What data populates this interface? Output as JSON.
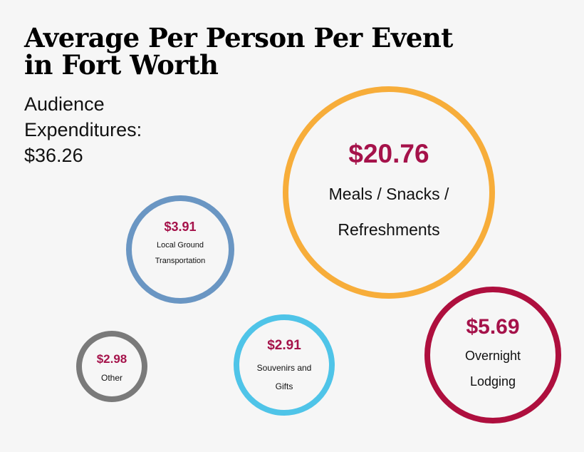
{
  "title_lines": [
    "Average Per Person Per Event",
    "in Fort Worth"
  ],
  "summary_lines": [
    "Audience",
    "Expenditures:",
    "$36.26"
  ],
  "chart_data": {
    "type": "bubble",
    "total": 36.26,
    "items": [
      {
        "value_label": "$20.76",
        "value": 20.76,
        "label_lines": [
          "Meals / Snacks /",
          "Refreshments"
        ],
        "color": "#f7ad3a"
      },
      {
        "value_label": "$3.91",
        "value": 3.91,
        "label_lines": [
          "Local Ground",
          "Transportation"
        ],
        "color": "#6a96c3"
      },
      {
        "value_label": "$5.69",
        "value": 5.69,
        "label_lines": [
          "Overnight",
          "Lodging"
        ],
        "color": "#ae0f3e"
      },
      {
        "value_label": "$2.98",
        "value": 2.98,
        "label_lines": [
          "Other"
        ],
        "color": "#7a7a7a"
      },
      {
        "value_label": "$2.91",
        "value": 2.91,
        "label_lines": [
          "Souvenirs and",
          "Gifts"
        ],
        "color": "#4fc4e8"
      }
    ]
  },
  "colors": {
    "value_text": "#a5124a",
    "label_text": "#111111"
  }
}
